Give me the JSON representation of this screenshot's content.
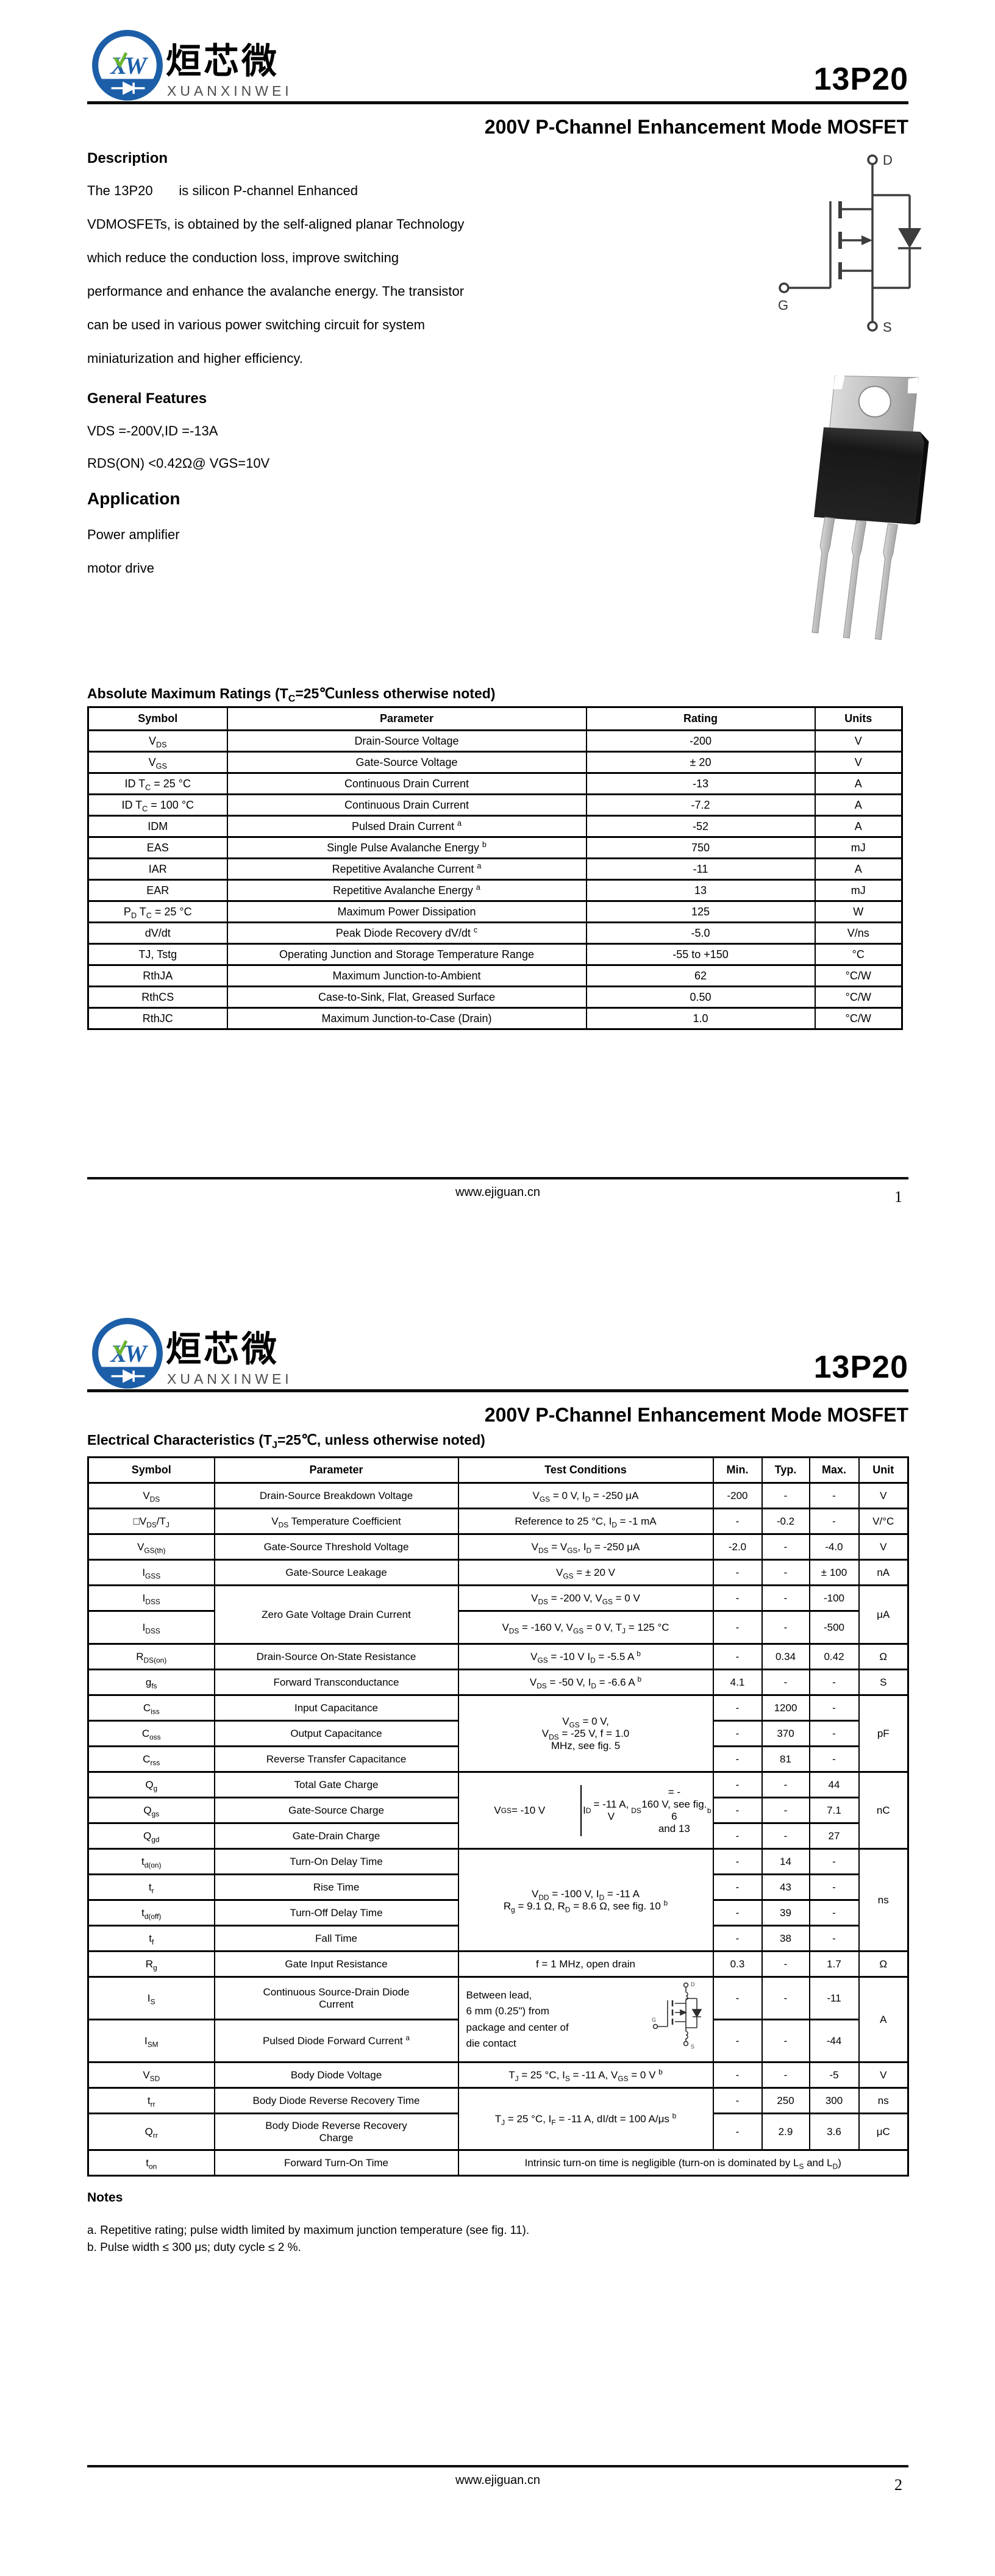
{
  "brand": {
    "cn": "烜芯微",
    "en": "XUANXINWEI",
    "part": "13P20"
  },
  "doc_title": "200V P-Channel Enhancement Mode MOSFET",
  "symbol_labels": {
    "d": "D",
    "g": "G",
    "s": "S"
  },
  "page1": {
    "description_heading": "Description",
    "description_lines": [
      "The 13P20       is silicon P-channel Enhanced",
      "VDMOSFETs, is obtained by the self-aligned planar Technology",
      "which reduce the conduction loss, improve switching",
      "performance and enhance the avalanche energy. The transistor",
      "can be used in various power switching circuit for system",
      "miniaturization and higher efficiency."
    ],
    "features_heading": "General Features",
    "features_lines": [
      "VDS =-200V,ID =-13A",
      "RDS(ON) <0.42Ω@ VGS=10V"
    ],
    "application_heading": "Application",
    "application_lines": [
      "Power amplifier",
      "motor drive"
    ],
    "abs_table": {
      "title": "Absolute Maximum Ratings (T~C~=25℃unless otherwise noted)",
      "headers": [
        "Symbol",
        "Parameter",
        "Rating",
        "Units"
      ],
      "rows": [
        [
          "V~DS~",
          "Drain-Source Voltage",
          "-200",
          "V"
        ],
        [
          "V~GS~",
          "Gate-Source Voltage",
          "± 20",
          "V"
        ],
        [
          "ID T~C~ = 25 °C",
          "Continuous Drain Current",
          "-13",
          "A"
        ],
        [
          "ID T~C~ = 100 °C",
          "Continuous Drain Current",
          "-7.2",
          "A"
        ],
        [
          "IDM",
          "Pulsed Drain Current ^a^",
          "-52",
          "A"
        ],
        [
          "EAS",
          "Single Pulse Avalanche Energy ^b^",
          "750",
          "mJ"
        ],
        [
          "IAR",
          "Repetitive Avalanche Current ^a^",
          "-11",
          "A"
        ],
        [
          "EAR",
          "Repetitive Avalanche Energy ^a^",
          "13",
          "mJ"
        ],
        [
          "P~D~ T~C~ = 25 °C",
          "Maximum Power Dissipation",
          "125",
          "W"
        ],
        [
          "dV/dt",
          "Peak Diode Recovery dV/dt ^c^",
          "-5.0",
          "V/ns"
        ],
        [
          "TJ, Tstg",
          "Operating Junction and Storage Temperature Range",
          "-55 to +150",
          "°C"
        ],
        [
          "RthJA",
          "Maximum Junction-to-Ambient",
          "62",
          "°C/W"
        ],
        [
          "RthCS",
          "Case-to-Sink, Flat, Greased Surface",
          "0.50",
          "°C/W"
        ],
        [
          "RthJC",
          "Maximum Junction-to-Case (Drain)",
          "1.0",
          "°C/W"
        ]
      ]
    },
    "footer": {
      "url": "www.ejiguan.cn",
      "page": "1"
    }
  },
  "page2": {
    "elec_table": {
      "title": "Electrical Characteristics (T~J~=25℃, unless otherwise noted)",
      "headers": [
        "Symbol",
        "Parameter",
        "Test Conditions",
        "Min.",
        "Typ.",
        "Max.",
        "Unit"
      ],
      "rows": [
        {
          "cells": [
            {
              "t": "V~DS~"
            },
            {
              "t": "Drain-Source Breakdown Voltage",
              "a": "l"
            },
            {
              "t": "V~GS~ = 0 V, I~D~ = -250 μA"
            },
            {
              "t": "-200"
            },
            {
              "t": "-"
            },
            {
              "t": "-"
            },
            {
              "t": "V"
            }
          ]
        },
        {
          "cells": [
            {
              "t": "□V~DS~/T~J~"
            },
            {
              "t": "V~DS~ Temperature Coefficient",
              "a": "l"
            },
            {
              "t": "Reference to 25 °C, I~D~ = -1 mA"
            },
            {
              "t": "-"
            },
            {
              "t": "-0.2"
            },
            {
              "t": "-"
            },
            {
              "t": "V/°C"
            }
          ]
        },
        {
          "cells": [
            {
              "t": "V~GS(th)~"
            },
            {
              "t": "Gate-Source Threshold Voltage",
              "a": "l"
            },
            {
              "t": "V~DS~ = V~GS~, I~D~ = -250 μA"
            },
            {
              "t": "-2.0"
            },
            {
              "t": "-"
            },
            {
              "t": "-4.0"
            },
            {
              "t": "V"
            }
          ]
        },
        {
          "cells": [
            {
              "t": "I~GSS~"
            },
            {
              "t": "Gate-Source Leakage",
              "a": "l"
            },
            {
              "t": "V~GS~ = ± 20 V"
            },
            {
              "t": "-"
            },
            {
              "t": "-"
            },
            {
              "t": "± 100"
            },
            {
              "t": "nA"
            }
          ]
        },
        {
          "cells": [
            {
              "t": "I~DSS~"
            },
            {
              "t": "Zero Gate Voltage Drain Current",
              "a": "l",
              "rs": 2
            },
            {
              "t": "V~DS~ = -200 V, V~GS~ = 0 V"
            },
            {
              "t": "-"
            },
            {
              "t": "-"
            },
            {
              "t": "-100"
            },
            {
              "t": "μA",
              "rs": 2
            }
          ]
        },
        {
          "h": 54,
          "cells": [
            {
              "t": "I~DSS~"
            },
            {
              "t": "V~DS~ = -160 V, V~GS~ = 0 V, T~J~ = 125 °C"
            },
            {
              "t": "-"
            },
            {
              "t": "-"
            },
            {
              "t": "-500"
            }
          ]
        },
        {
          "cells": [
            {
              "t": "R~DS(on)~"
            },
            {
              "t": "Drain-Source On-State Resistance",
              "a": "l"
            },
            {
              "t": "V~GS~ = -10 V I~D~ = -5.5 A ^b^",
              "a": "l"
            },
            {
              "t": "-"
            },
            {
              "t": "0.34"
            },
            {
              "t": "0.42"
            },
            {
              "t": "Ω"
            }
          ]
        },
        {
          "cells": [
            {
              "t": "g~fs~"
            },
            {
              "t": "Forward Transconductance",
              "a": "l"
            },
            {
              "t": "V~DS~ = -50 V, I~D~ = -6.6 A ^b^"
            },
            {
              "t": "4.1"
            },
            {
              "t": "-"
            },
            {
              "t": "-"
            },
            {
              "t": "S"
            }
          ]
        },
        {
          "cells": [
            {
              "t": "C~iss~"
            },
            {
              "t": "Input Capacitance",
              "a": "l"
            },
            {
              "t": "V~GS~ = 0 V,\nV~DS~ = -25 V, f = 1.0\nMHz, see fig. 5",
              "rs": 3
            },
            {
              "t": "-"
            },
            {
              "t": "1200"
            },
            {
              "t": "-"
            },
            {
              "t": "pF",
              "rs": 3
            }
          ]
        },
        {
          "cells": [
            {
              "t": "C~oss~"
            },
            {
              "t": "Output Capacitance",
              "a": "l"
            },
            {
              "t": "-"
            },
            {
              "t": "370"
            },
            {
              "t": "-"
            }
          ]
        },
        {
          "cells": [
            {
              "t": "C~rss~"
            },
            {
              "t": "Reverse Transfer Capacitance",
              "a": "l"
            },
            {
              "t": "-"
            },
            {
              "t": "81"
            },
            {
              "t": "-"
            }
          ]
        },
        {
          "cells": [
            {
              "t": "Q~g~"
            },
            {
              "t": "Total Gate Charge",
              "a": "l"
            },
            {
              "split": [
                "V~GS~ = -10 V",
                "I~D~ = -11 A, V~DS~ = -\n160 V, see fig. 6\nand 13 ^b^"
              ],
              "rs": 3
            },
            {
              "t": "-"
            },
            {
              "t": "-"
            },
            {
              "t": "44"
            },
            {
              "t": "nC",
              "rs": 3
            }
          ]
        },
        {
          "cells": [
            {
              "t": "Q~gs~"
            },
            {
              "t": "Gate-Source Charge",
              "a": "l"
            },
            {
              "t": "-"
            },
            {
              "t": "-"
            },
            {
              "t": "7.1"
            }
          ]
        },
        {
          "cells": [
            {
              "t": "Q~gd~"
            },
            {
              "t": "Gate-Drain Charge",
              "a": "l"
            },
            {
              "t": "-"
            },
            {
              "t": "-"
            },
            {
              "t": "27"
            }
          ]
        },
        {
          "cells": [
            {
              "t": "t~d(on)~"
            },
            {
              "t": "Turn-On Delay Time",
              "a": "l"
            },
            {
              "t": "V~DD~ = -100 V, I~D~ = -11 A\nR~g~ = 9.1 Ω, R~D~ = 8.6 Ω, see fig. 10 ^b^",
              "rs": 4
            },
            {
              "t": "-"
            },
            {
              "t": "14"
            },
            {
              "t": "-"
            },
            {
              "t": "ns",
              "rs": 4
            }
          ]
        },
        {
          "cells": [
            {
              "t": "t~r~"
            },
            {
              "t": "Rise Time",
              "a": "l"
            },
            {
              "t": "-"
            },
            {
              "t": "43"
            },
            {
              "t": "-"
            }
          ]
        },
        {
          "cells": [
            {
              "t": "t~d(off)~"
            },
            {
              "t": "Turn-Off Delay Time",
              "a": "l"
            },
            {
              "t": "-"
            },
            {
              "t": "39"
            },
            {
              "t": "-"
            }
          ]
        },
        {
          "cells": [
            {
              "t": "t~f~"
            },
            {
              "t": "Fall Time",
              "a": "l"
            },
            {
              "t": "-"
            },
            {
              "t": "38"
            },
            {
              "t": "-"
            }
          ]
        },
        {
          "cells": [
            {
              "t": "R~g~"
            },
            {
              "t": "Gate Input Resistance",
              "a": "l"
            },
            {
              "t": "f = 1 MHz, open drain"
            },
            {
              "t": "0.3"
            },
            {
              "t": "-"
            },
            {
              "t": "1.7"
            },
            {
              "t": "Ω"
            }
          ]
        },
        {
          "h": 70,
          "cells": [
            {
              "t": "I~S~"
            },
            {
              "t": "Continuous Source-Drain Diode\nCurrent",
              "a": "l"
            },
            {
              "t": "Between lead,\n6 mm (0.25\") from\npackage and center of\ndie contact",
              "rs": 2,
              "icon": true
            },
            {
              "t": "-"
            },
            {
              "t": "-"
            },
            {
              "t": "-11"
            },
            {
              "t": "A",
              "rs": 2
            }
          ]
        },
        {
          "h": 70,
          "cells": [
            {
              "t": "I~SM~"
            },
            {
              "t": "Pulsed Diode Forward Current ^a^",
              "a": "l"
            },
            {
              "t": "-"
            },
            {
              "t": "-"
            },
            {
              "t": "-44"
            }
          ]
        },
        {
          "cells": [
            {
              "t": "V~SD~"
            },
            {
              "t": "Body Diode Voltage",
              "a": "l"
            },
            {
              "t": "T~J~ = 25 °C, I~S~ = -11 A, V~GS~ = 0 V ^b^"
            },
            {
              "t": "-"
            },
            {
              "t": "-"
            },
            {
              "t": "-5"
            },
            {
              "t": "V"
            }
          ]
        },
        {
          "cells": [
            {
              "t": "t~rr~"
            },
            {
              "t": "Body Diode Reverse Recovery Time",
              "a": "l"
            },
            {
              "t": "T~J~ = 25 °C, I~F~ = -11 A, dI/dt = 100 A/μs ^b^",
              "rs": 2
            },
            {
              "t": "-"
            },
            {
              "t": "250"
            },
            {
              "t": "300"
            },
            {
              "t": "ns"
            }
          ]
        },
        {
          "h": 60,
          "cells": [
            {
              "t": "Q~rr~"
            },
            {
              "t": "Body Diode Reverse Recovery\nCharge",
              "a": "l"
            },
            {
              "t": "-"
            },
            {
              "t": "2.9"
            },
            {
              "t": "3.6"
            },
            {
              "t": "μC"
            }
          ]
        },
        {
          "cells": [
            {
              "t": "t~on~"
            },
            {
              "t": "Forward Turn-On Time",
              "a": "l"
            },
            {
              "t": "Intrinsic turn-on time is negligible (turn-on is dominated by L~S~ and L~D~)",
              "cs": 5
            }
          ]
        }
      ]
    },
    "notes": {
      "title": "Notes",
      "items": [
        "a.  Repetitive rating; pulse width limited by maximum junction temperature (see fig. 11).",
        "b.  Pulse width ≤ 300 μs; duty cycle ≤ 2 %."
      ]
    },
    "footer": {
      "url": "www.ejiguan.cn",
      "page": "2"
    }
  }
}
